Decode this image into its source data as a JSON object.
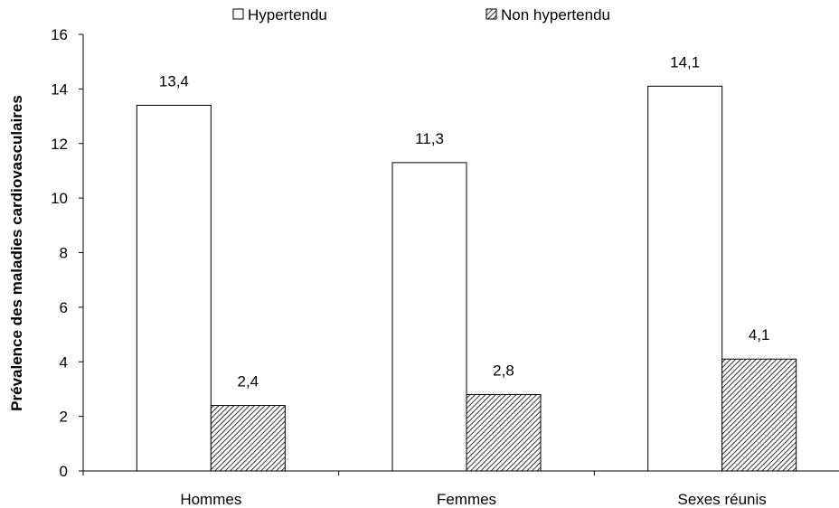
{
  "chart_data": {
    "type": "bar",
    "title": "",
    "xlabel": "",
    "ylabel": "Prévalence des maladies cardiovasculaires",
    "ylim": [
      0,
      16
    ],
    "yticks": [
      0,
      2,
      4,
      6,
      8,
      10,
      12,
      14,
      16
    ],
    "categories": [
      "Hommes",
      "Femmes",
      "Sexes réunis"
    ],
    "series": [
      {
        "name": "Hypertendu",
        "values": [
          13.4,
          11.3,
          14.1
        ],
        "labels": [
          "13,4",
          "11,3",
          "14,1"
        ],
        "fill": "plain-white"
      },
      {
        "name": "Non hypertendu",
        "values": [
          2.4,
          2.8,
          4.1
        ],
        "labels": [
          "2,4",
          "2,8",
          "4,1"
        ],
        "fill": "diagonal-hatch"
      }
    ],
    "grid": false,
    "legend_position": "top"
  }
}
